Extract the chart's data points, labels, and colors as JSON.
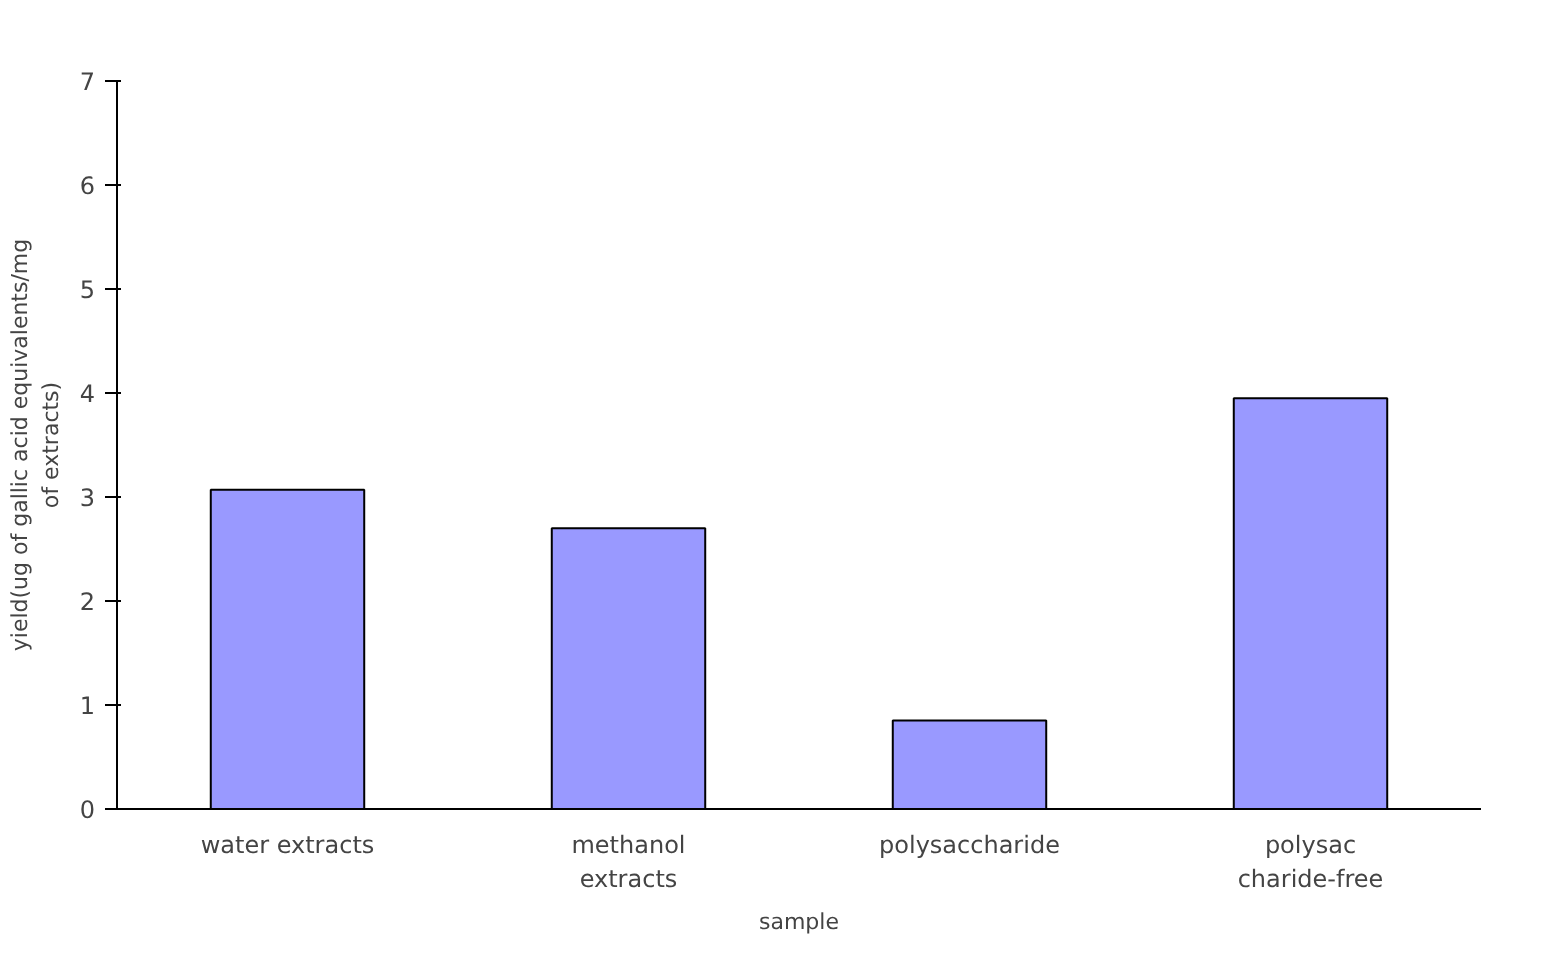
{
  "chart_data": {
    "type": "bar",
    "xlabel": "sample",
    "ylabel": "yield(ug of gallic acid equivalents/mg\nof extracts)",
    "categories": [
      "water extracts",
      "methanol\nextracts",
      "polysaccharide",
      "polysac\ncharide-free"
    ],
    "values": [
      3.07,
      2.7,
      0.85,
      3.95
    ],
    "color": "#9999ff",
    "ylim": [
      0,
      7
    ],
    "yticks": [
      0,
      1,
      2,
      3,
      4,
      5,
      6,
      7
    ],
    "grid": false
  }
}
